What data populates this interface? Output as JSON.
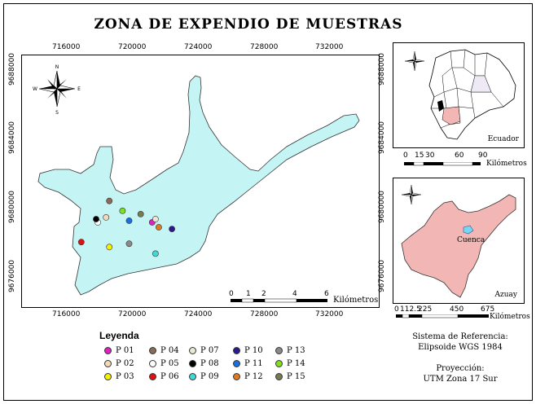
{
  "title": "ZONA DE EXPENDIO DE MUESTRAS",
  "main_map": {
    "x_ticks": [
      "716000",
      "720000",
      "724000",
      "728000",
      "732000"
    ],
    "y_ticks": [
      "9688000",
      "9684000",
      "9680000",
      "9676000"
    ],
    "region_color": "#c4f5f4",
    "scale": {
      "labels": [
        "0",
        "1",
        "2",
        "4",
        "6"
      ],
      "unit": "Kilómetros"
    },
    "points": [
      {
        "id": "P 01",
        "color": "#e020c0",
        "x": 722.6,
        "y": 9679.3
      },
      {
        "id": "P 02",
        "color": "#f4d9b8",
        "x": 719.8,
        "y": 9679.6
      },
      {
        "id": "P 03",
        "color": "#f4f000",
        "x": 720.0,
        "y": 9677.8
      },
      {
        "id": "P 04",
        "color": "#8b6b57",
        "x": 720.0,
        "y": 9680.6
      },
      {
        "id": "P 05",
        "color": "#ffffff",
        "x": 719.3,
        "y": 9679.3
      },
      {
        "id": "P 06",
        "color": "#e01010",
        "x": 718.3,
        "y": 9678.1
      },
      {
        "id": "P 07",
        "color": "#e8e8d4",
        "x": 722.8,
        "y": 9679.5
      },
      {
        "id": "P 08",
        "color": "#000000",
        "x": 719.2,
        "y": 9679.5
      },
      {
        "id": "P 09",
        "color": "#3fd9d6",
        "x": 722.8,
        "y": 9677.4
      },
      {
        "id": "P 10",
        "color": "#2a1a8c",
        "x": 723.8,
        "y": 9678.9
      },
      {
        "id": "P 11",
        "color": "#1a6fe0",
        "x": 721.2,
        "y": 9679.4
      },
      {
        "id": "P 12",
        "color": "#e07a20",
        "x": 723.0,
        "y": 9679.0
      },
      {
        "id": "P 13",
        "color": "#8a8a8a",
        "x": 721.2,
        "y": 9678.0
      },
      {
        "id": "P 14",
        "color": "#7fe020",
        "x": 720.8,
        "y": 9680.0
      },
      {
        "id": "P 15",
        "color": "#7a7a50",
        "x": 721.9,
        "y": 9679.8
      }
    ]
  },
  "ecuador_inset": {
    "label": "Ecuador",
    "scale_labels": [
      "0",
      "15",
      "30",
      "60",
      "90"
    ],
    "unit": "Kilómetros"
  },
  "azuay_inset": {
    "label": "Azuay",
    "city": "Cuenca",
    "scale_labels": [
      "0",
      "112.5",
      "225",
      "450",
      "675"
    ],
    "unit": "Kilómetros",
    "region_color": "#f2b7b4"
  },
  "legend": {
    "title": "Leyenda",
    "items": [
      "P 01",
      "P 04",
      "P 07",
      "P 10",
      "P 13",
      "P 02",
      "P 05",
      "P 08",
      "P 11",
      "P 14",
      "P 03",
      "P 06",
      "P 09",
      "P 12",
      "P 15"
    ]
  },
  "info": {
    "ref_line1": "Sistema de Referencia:",
    "ref_line2": "Elipsoide WGS 1984",
    "proj_line1": "Proyección:",
    "proj_line2": "UTM Zona 17 Sur"
  },
  "compass": {
    "n": "N",
    "s": "S",
    "e": "E",
    "w": "W"
  }
}
